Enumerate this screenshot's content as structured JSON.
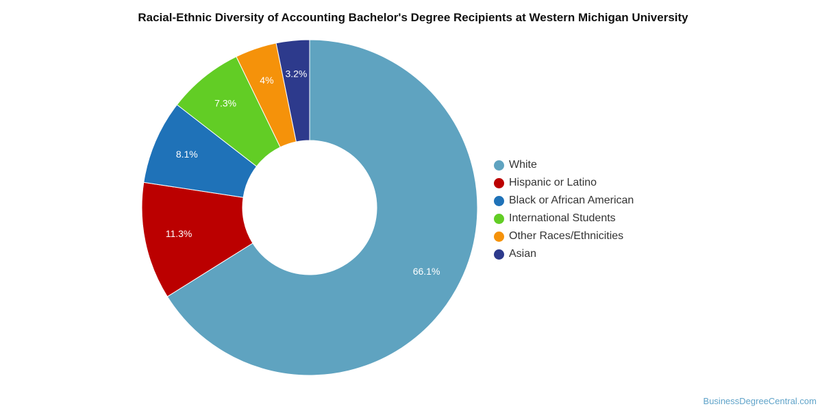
{
  "chart_data": {
    "type": "pie",
    "title": "Racial-Ethnic Diversity of Accounting Bachelor's Degree Recipients at Western Michigan University",
    "donut": true,
    "legend_position": "right",
    "slices": [
      {
        "label": "White",
        "value": 66.1,
        "value_label": "66.1%",
        "color": "#5fa3c0"
      },
      {
        "label": "Hispanic or Latino",
        "value": 11.3,
        "value_label": "11.3%",
        "color": "#bb0000"
      },
      {
        "label": "Black or African American",
        "value": 8.1,
        "value_label": "8.1%",
        "color": "#1f72b8"
      },
      {
        "label": "International Students",
        "value": 7.3,
        "value_label": "7.3%",
        "color": "#62cd25"
      },
      {
        "label": "Other Races/Ethnicities",
        "value": 4.0,
        "value_label": "4%",
        "color": "#f5920a"
      },
      {
        "label": "Asian",
        "value": 3.2,
        "value_label": "3.2%",
        "color": "#2d3a8c"
      }
    ]
  },
  "watermark": "BusinessDegreeCentral.com"
}
